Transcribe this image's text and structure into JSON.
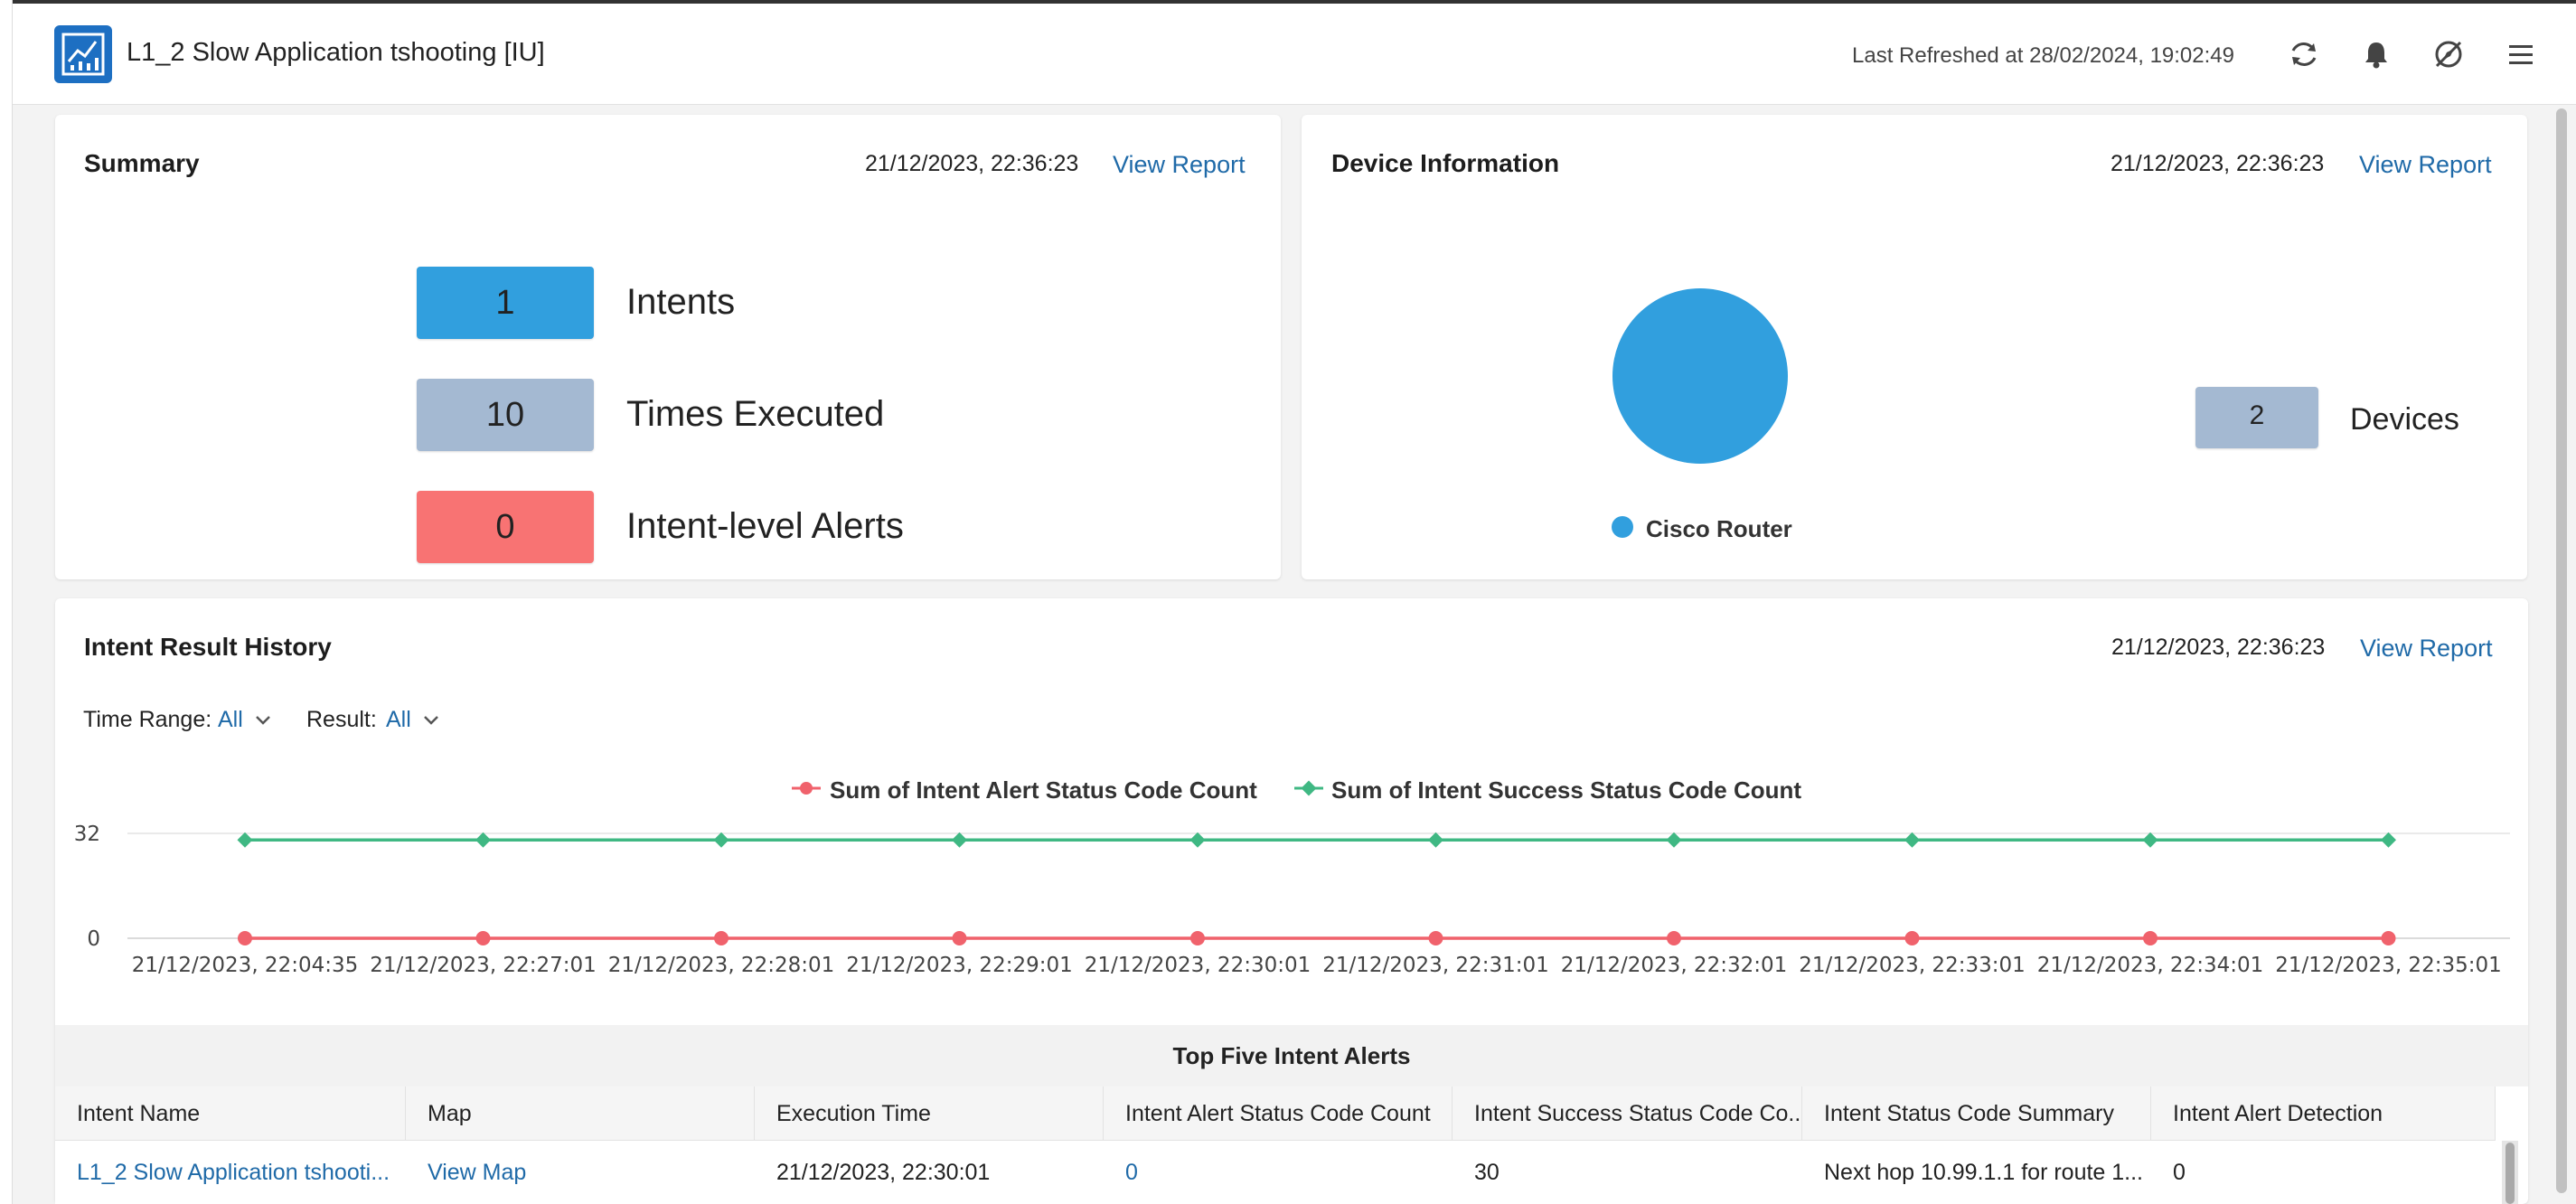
{
  "header": {
    "title": "L1_2 Slow Application tshooting [IU]",
    "last_refreshed": "Last Refreshed at 28/02/2024, 19:02:49",
    "icons": [
      "refresh-icon",
      "bell-icon",
      "no-compass-icon",
      "menu-icon"
    ]
  },
  "summary": {
    "title": "Summary",
    "date": "21/12/2023, 22:36:23",
    "view_report": "View Report",
    "kpis": [
      {
        "value": "1",
        "label": "Intents",
        "color": "#319fde"
      },
      {
        "value": "10",
        "label": "Times Executed",
        "color": "#a4b9d2"
      },
      {
        "value": "0",
        "label": "Intent-level Alerts",
        "color": "#f87373"
      }
    ]
  },
  "device_info": {
    "title": "Device Information",
    "date": "21/12/2023, 22:36:23",
    "view_report": "View Report",
    "pie_legend": "Cisco Router",
    "pie_color": "#319fde",
    "devices_count": "2",
    "devices_label": "Devices"
  },
  "history": {
    "title": "Intent Result History",
    "date": "21/12/2023, 22:36:23",
    "view_report": "View Report",
    "time_range_label": "Time Range:",
    "time_range_value": "All",
    "result_label": "Result:",
    "result_value": "All"
  },
  "chart_data": {
    "type": "line",
    "x": [
      "21/12/2023, 22:04:35",
      "21/12/2023, 22:27:01",
      "21/12/2023, 22:28:01",
      "21/12/2023, 22:29:01",
      "21/12/2023, 22:30:01",
      "21/12/2023, 22:31:01",
      "21/12/2023, 22:32:01",
      "21/12/2023, 22:33:01",
      "21/12/2023, 22:34:01",
      "21/12/2023, 22:35:01"
    ],
    "series": [
      {
        "name": "Sum of Intent Alert Status Code Count",
        "color": "#f0626c",
        "values": [
          0,
          0,
          0,
          0,
          0,
          0,
          0,
          0,
          0,
          0
        ]
      },
      {
        "name": "Sum of Intent Success Status Code Count",
        "color": "#3fb883",
        "values": [
          30,
          30,
          30,
          30,
          30,
          30,
          30,
          30,
          30,
          30
        ]
      }
    ],
    "yticks": [
      "32",
      "0"
    ],
    "ylim": [
      0,
      32
    ],
    "legend_position": "top-center",
    "grid": true
  },
  "table": {
    "title": "Top Five Intent Alerts",
    "columns": [
      "Intent Name",
      "Map",
      "Execution Time",
      "Intent Alert Status Code Count",
      "Intent Success Status Code Co...",
      "Intent Status Code Summary",
      "Intent Alert Detection"
    ],
    "rows": [
      [
        "L1_2 Slow Application tshooti...",
        "View Map",
        "21/12/2023, 22:30:01",
        "0",
        "30",
        "Next hop 10.99.1.1 for route 1...",
        "0"
      ]
    ]
  }
}
